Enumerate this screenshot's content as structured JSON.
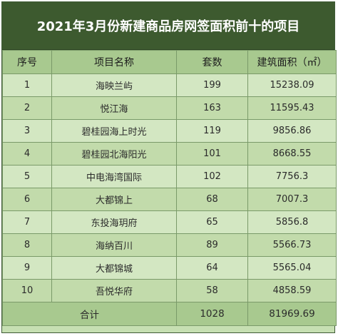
{
  "title": "2021年3月份新建商品房网签面积前十的项目",
  "headers": [
    "序号",
    "项目名称",
    "套数",
    "建筑面积（㎡）"
  ],
  "rows": [
    {
      "no": "1",
      "name": "海映兰屿",
      "units": "199",
      "area": "15238.09"
    },
    {
      "no": "2",
      "name": "悦江海",
      "units": "163",
      "area": "11595.43"
    },
    {
      "no": "3",
      "name": "碧桂园海上时光",
      "units": "119",
      "area": "9856.86"
    },
    {
      "no": "4",
      "name": "碧桂园北海阳光",
      "units": "101",
      "area": "8668.55"
    },
    {
      "no": "5",
      "name": "中电海湾国际",
      "units": "102",
      "area": "7756.3"
    },
    {
      "no": "6",
      "name": "大都锦上",
      "units": "68",
      "area": "7007.3"
    },
    {
      "no": "7",
      "name": "东投海玥府",
      "units": "65",
      "area": "5856.8"
    },
    {
      "no": "8",
      "name": "海纳百川",
      "units": "89",
      "area": "5566.73"
    },
    {
      "no": "9",
      "name": "大都锦城",
      "units": "64",
      "area": "5565.04"
    },
    {
      "no": "10",
      "name": "吾悦华府",
      "units": "58",
      "area": "4858.59"
    }
  ],
  "total": {
    "label": "合计",
    "units": "1028",
    "area": "81969.69"
  }
}
